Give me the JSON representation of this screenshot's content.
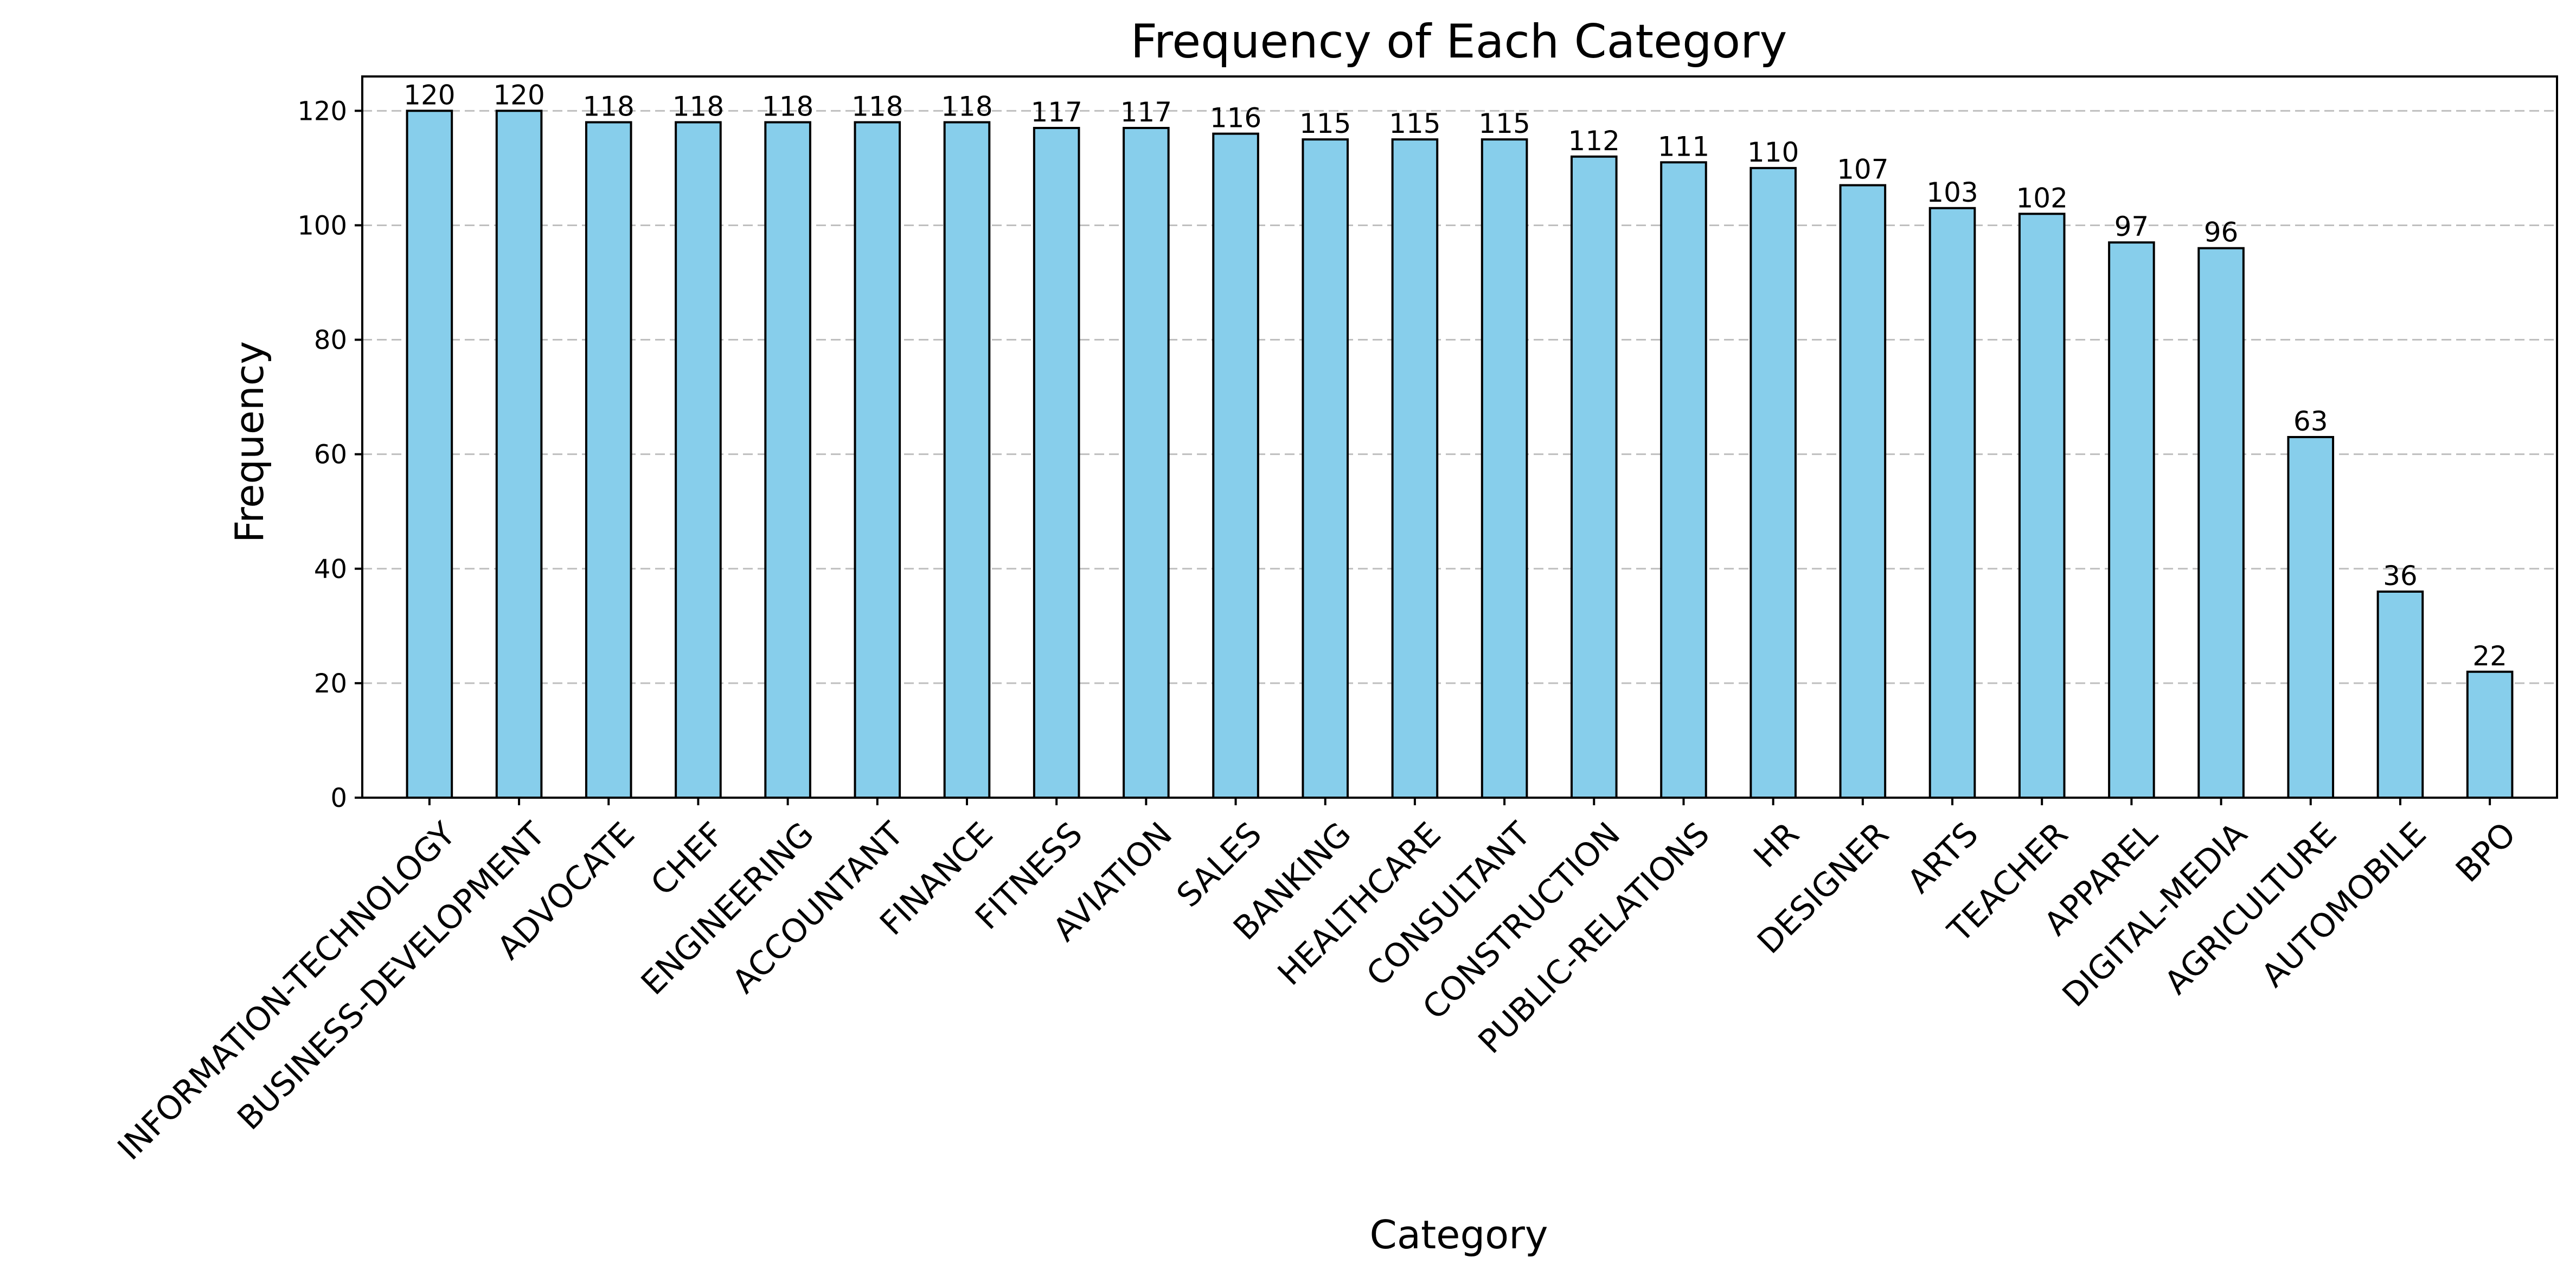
{
  "chart_data": {
    "type": "bar",
    "title": "Frequency of Each Category",
    "xlabel": "Category",
    "ylabel": "Frequency",
    "ylim": [
      0,
      126
    ],
    "yticks": [
      0,
      20,
      40,
      60,
      80,
      100,
      120
    ],
    "grid": "y-dashed",
    "bar_color": "#87CEEB",
    "edge_color": "#000000",
    "categories": [
      "INFORMATION-TECHNOLOGY",
      "BUSINESS-DEVELOPMENT",
      "ADVOCATE",
      "CHEF",
      "ENGINEERING",
      "ACCOUNTANT",
      "FINANCE",
      "FITNESS",
      "AVIATION",
      "SALES",
      "BANKING",
      "HEALTHCARE",
      "CONSULTANT",
      "CONSTRUCTION",
      "PUBLIC-RELATIONS",
      "HR",
      "DESIGNER",
      "ARTS",
      "TEACHER",
      "APPAREL",
      "DIGITAL-MEDIA",
      "AGRICULTURE",
      "AUTOMOBILE",
      "BPO"
    ],
    "values": [
      120,
      120,
      118,
      118,
      118,
      118,
      118,
      117,
      117,
      116,
      115,
      115,
      115,
      112,
      111,
      110,
      107,
      103,
      102,
      97,
      96,
      63,
      36,
      22
    ]
  }
}
